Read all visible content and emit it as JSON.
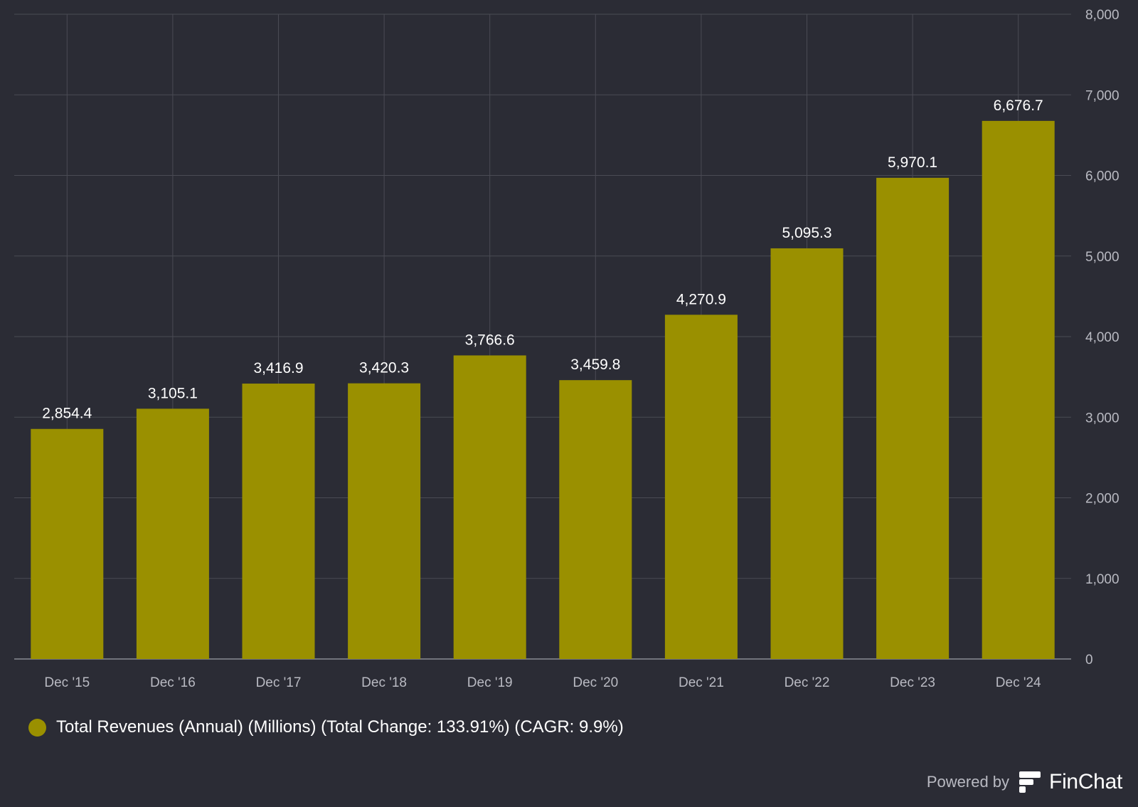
{
  "chart_data": {
    "type": "bar",
    "categories": [
      "Dec '15",
      "Dec '16",
      "Dec '17",
      "Dec '18",
      "Dec '19",
      "Dec '20",
      "Dec '21",
      "Dec '22",
      "Dec '23",
      "Dec '24"
    ],
    "series": [
      {
        "name": "Total Revenues (Annual) (Millions) (Total Change: 133.91%) (CAGR: 9.9%)",
        "values": [
          2854.4,
          3105.1,
          3416.9,
          3420.3,
          3766.6,
          3459.8,
          4270.9,
          5095.3,
          5970.1,
          6676.7
        ],
        "labels": [
          "2,854.4",
          "3,105.1",
          "3,416.9",
          "3,420.3",
          "3,766.6",
          "3,459.8",
          "4,270.9",
          "5,095.3",
          "5,970.1",
          "6,676.7"
        ],
        "color": "#9a9000"
      }
    ],
    "yticks": [
      0,
      1000,
      2000,
      3000,
      4000,
      5000,
      6000,
      7000,
      8000
    ],
    "ytick_labels": [
      "0",
      "1,000",
      "2,000",
      "3,000",
      "4,000",
      "5,000",
      "6,000",
      "7,000",
      "8,000"
    ],
    "ylim": [
      0,
      8000
    ],
    "y_axis_position": "right",
    "grid": true,
    "legend_position": "bottom-left",
    "background": "#2b2c35",
    "grid_color": "#4a4b54"
  },
  "branding": {
    "powered_by": "Powered by",
    "brand": "FinChat",
    "logo_icon": "finchat-logo-icon"
  }
}
